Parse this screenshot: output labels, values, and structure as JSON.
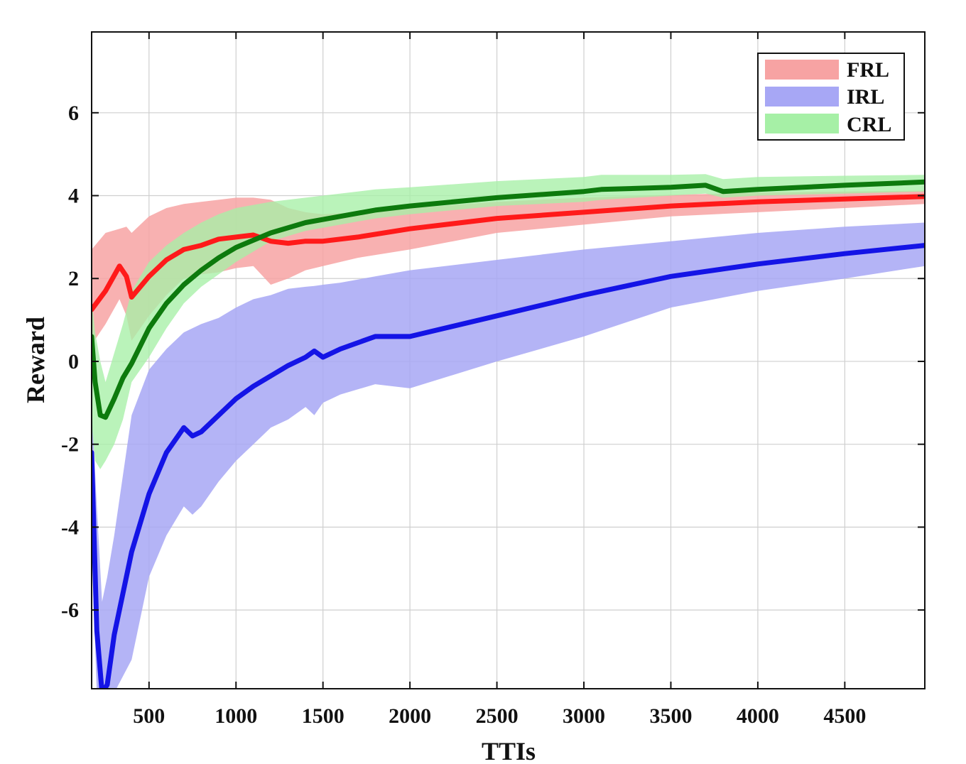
{
  "chart_data": {
    "type": "line",
    "xlabel": "TTIs",
    "ylabel": "Reward",
    "xlim": [
      170,
      4960
    ],
    "ylim": [
      -7.9,
      7.95
    ],
    "xticks": [
      500,
      1000,
      1500,
      2000,
      2500,
      3000,
      3500,
      4000,
      4500
    ],
    "yticks": [
      -6,
      -4,
      -2,
      0,
      2,
      4,
      6
    ],
    "grid": true,
    "legend_position": "top-right",
    "colors": {
      "FRL": "#ff1a1a",
      "IRL": "#1414e6",
      "CRL": "#0d7a0d",
      "FRL_band": "#f7a3a3",
      "IRL_band": "#a7a7f5",
      "CRL_band": "#a6f0a6",
      "overlap_band": "#b0ad70"
    },
    "series": [
      {
        "name": "FRL",
        "x": [
          170,
          250,
          330,
          370,
          400,
          500,
          600,
          700,
          800,
          900,
          1000,
          1100,
          1200,
          1300,
          1400,
          1500,
          1700,
          2000,
          2500,
          3000,
          3500,
          4000,
          4500,
          4960
        ],
        "y": [
          1.25,
          1.7,
          2.3,
          2.05,
          1.55,
          2.05,
          2.45,
          2.7,
          2.8,
          2.95,
          3.0,
          3.05,
          2.9,
          2.85,
          2.9,
          2.9,
          3.0,
          3.2,
          3.45,
          3.6,
          3.75,
          3.85,
          3.92,
          3.98
        ],
        "lower": [
          0.4,
          0.9,
          1.5,
          1.1,
          0.5,
          1.1,
          1.6,
          2.0,
          2.1,
          2.15,
          2.25,
          2.3,
          1.85,
          2.0,
          2.2,
          2.3,
          2.5,
          2.7,
          3.1,
          3.3,
          3.5,
          3.6,
          3.7,
          3.8
        ],
        "upper": [
          2.7,
          3.1,
          3.2,
          3.25,
          3.1,
          3.5,
          3.7,
          3.8,
          3.85,
          3.9,
          3.95,
          3.95,
          3.9,
          3.7,
          3.6,
          3.55,
          3.6,
          3.7,
          3.85,
          3.95,
          4.02,
          4.07,
          4.1,
          4.12
        ]
      },
      {
        "name": "IRL",
        "x": [
          170,
          200,
          230,
          260,
          300,
          400,
          500,
          600,
          700,
          750,
          800,
          900,
          1000,
          1100,
          1200,
          1300,
          1400,
          1450,
          1500,
          1600,
          1800,
          2000,
          2500,
          3000,
          3500,
          4000,
          4500,
          4960
        ],
        "y": [
          -2.2,
          -6.5,
          -8.0,
          -7.8,
          -6.6,
          -4.6,
          -3.2,
          -2.2,
          -1.6,
          -1.8,
          -1.7,
          -1.3,
          -0.9,
          -0.6,
          -0.35,
          -0.1,
          0.1,
          0.25,
          0.1,
          0.3,
          0.6,
          0.6,
          1.1,
          1.6,
          2.05,
          2.35,
          2.6,
          2.8
        ],
        "lower": [
          -4.5,
          -8.0,
          -8.0,
          -8.0,
          -8.0,
          -7.2,
          -5.2,
          -4.2,
          -3.5,
          -3.7,
          -3.5,
          -2.9,
          -2.4,
          -2.0,
          -1.6,
          -1.4,
          -1.1,
          -1.3,
          -1.0,
          -0.8,
          -0.55,
          -0.65,
          0.0,
          0.6,
          1.3,
          1.7,
          2.0,
          2.3
        ],
        "upper": [
          -1.0,
          -3.5,
          -5.8,
          -5.2,
          -4.2,
          -1.3,
          -0.2,
          0.3,
          0.7,
          0.8,
          0.9,
          1.05,
          1.3,
          1.5,
          1.6,
          1.75,
          1.8,
          1.82,
          1.85,
          1.9,
          2.05,
          2.2,
          2.45,
          2.7,
          2.9,
          3.1,
          3.25,
          3.35
        ]
      },
      {
        "name": "CRL",
        "x": [
          170,
          190,
          220,
          250,
          300,
          350,
          400,
          500,
          600,
          700,
          800,
          900,
          1000,
          1200,
          1400,
          1600,
          1800,
          2000,
          2500,
          3000,
          3100,
          3500,
          3700,
          3800,
          4000,
          4500,
          4960
        ],
        "y": [
          0.6,
          -0.5,
          -1.3,
          -1.35,
          -0.9,
          -0.4,
          -0.05,
          0.8,
          1.4,
          1.85,
          2.2,
          2.5,
          2.75,
          3.1,
          3.35,
          3.5,
          3.65,
          3.75,
          3.95,
          4.1,
          4.15,
          4.2,
          4.25,
          4.1,
          4.15,
          4.25,
          4.33
        ],
        "lower": [
          -1.5,
          -2.4,
          -2.6,
          -2.4,
          -2.0,
          -1.4,
          -0.5,
          0.1,
          0.8,
          1.4,
          1.8,
          2.1,
          2.4,
          2.9,
          3.15,
          3.3,
          3.45,
          3.55,
          3.75,
          3.85,
          3.9,
          4.0,
          4.05,
          3.95,
          4.0,
          4.05,
          4.1
        ],
        "upper": [
          1.5,
          0.7,
          0.0,
          -0.5,
          0.2,
          0.9,
          1.7,
          2.4,
          2.8,
          3.1,
          3.35,
          3.55,
          3.7,
          3.85,
          3.95,
          4.05,
          4.15,
          4.2,
          4.35,
          4.45,
          4.5,
          4.5,
          4.52,
          4.4,
          4.45,
          4.48,
          4.5
        ]
      }
    ]
  }
}
